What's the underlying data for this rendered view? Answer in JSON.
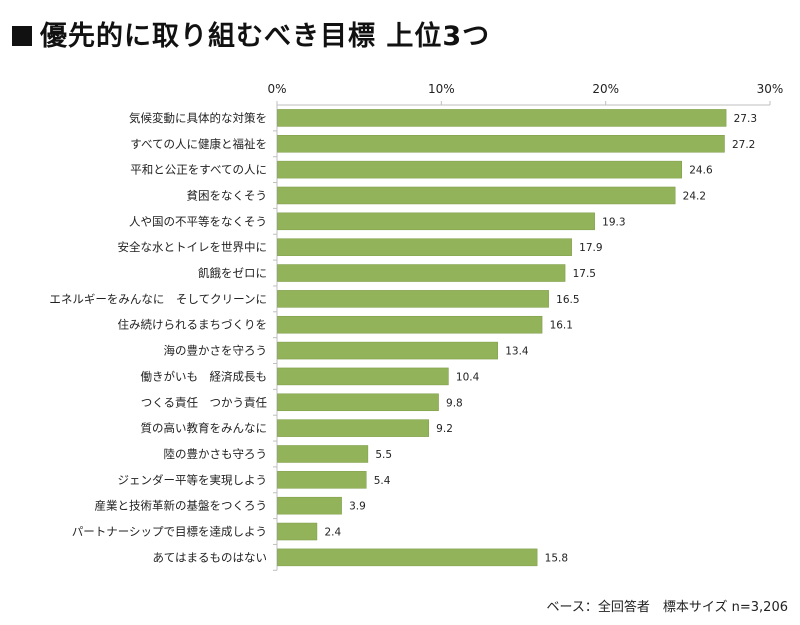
{
  "title": "優先的に取り組むべき目標 上位3つ",
  "footer": "ベース：全回答者　標本サイズ n=3,206",
  "colors": {
    "bar": "#93b35a",
    "bar_stroke": "#7a9a44",
    "axis": "#bfbfbf"
  },
  "chart_data": {
    "type": "bar",
    "orientation": "horizontal",
    "categories": [
      "気候変動に具体的な対策を",
      "すべての人に健康と福祉を",
      "平和と公正をすべての人に",
      "貧困をなくそう",
      "人や国の不平等をなくそう",
      "安全な水とトイレを世界中に",
      "飢餓をゼロに",
      "エネルギーをみんなに　そしてクリーンに",
      "住み続けられるまちづくりを",
      "海の豊かさを守ろう",
      "働きがいも　経済成長も",
      "つくる責任　つかう責任",
      "質の高い教育をみんなに",
      "陸の豊かさも守ろう",
      "ジェンダー平等を実現しよう",
      "産業と技術革新の基盤をつくろう",
      "パートナーシップで目標を達成しよう",
      "あてはまるものはない"
    ],
    "values": [
      27.3,
      27.2,
      24.6,
      24.2,
      19.3,
      17.9,
      17.5,
      16.5,
      16.1,
      13.4,
      10.4,
      9.8,
      9.2,
      5.5,
      5.4,
      3.9,
      2.4,
      15.8
    ],
    "value_labels": [
      "27.3",
      "27.2",
      "24.6",
      "24.2",
      "19.3",
      "17.9",
      "17.5",
      "16.5",
      "16.1",
      "13.4",
      "10.4",
      "9.8",
      "9.2",
      "5.5",
      "5.4",
      "3.9",
      "2.4",
      "15.8"
    ],
    "xlim": [
      0,
      30
    ],
    "ticks": [
      0,
      10,
      20,
      30
    ],
    "tick_labels": [
      "0%",
      "10%",
      "20%",
      "30%"
    ],
    "axis_position": "top",
    "grid": false,
    "legend": "none"
  }
}
